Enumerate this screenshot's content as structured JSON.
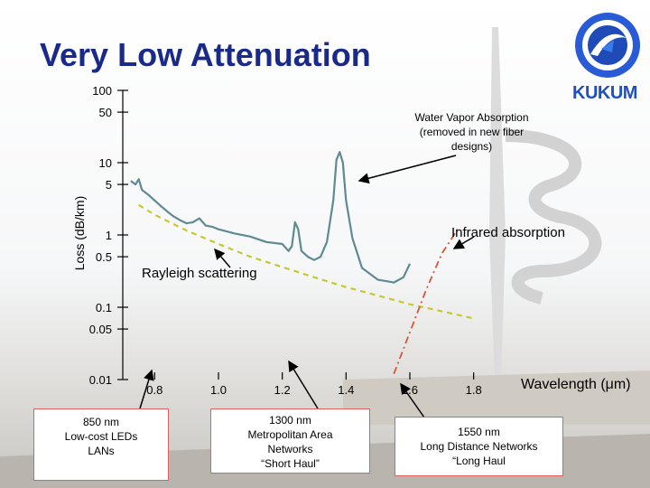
{
  "slide": {
    "title": "Very Low Attenuation",
    "logo_text": "KUKUM"
  },
  "notes": {
    "water_vapor": [
      "Water Vapor Absorption",
      "(removed in new fiber",
      "designs)"
    ],
    "n850": [
      "850 nm",
      "Low-cost LEDs",
      "LANs"
    ],
    "n1300": [
      "1300 nm",
      "Metropolitan Area",
      "Networks",
      "“Short Haul”"
    ],
    "n1550": [
      "1550 nm",
      "Long Distance Networks",
      "“Long Haul"
    ]
  },
  "colors": {
    "title": "#1a2a8a",
    "loss_curve": "#5f8a93",
    "rayleigh": "#c8c832",
    "infrared": "#d8553a",
    "note_border": "#e06060"
  },
  "chart_data": {
    "type": "line",
    "xlabel": "Wavelength (μm)",
    "ylabel": "Loss (dB/km)",
    "y_scale": "log",
    "ylim": [
      0.01,
      100
    ],
    "xlim": [
      0.7,
      1.9
    ],
    "x_ticks": [
      "0.8",
      "1.0",
      "1.2",
      "1.4",
      "1.6",
      "1.8"
    ],
    "y_ticks": [
      "100",
      "50",
      "10",
      "5",
      "1",
      "0.5",
      "0.1",
      "0.05",
      "0.01"
    ],
    "grid": false,
    "annotations": [
      "Infrared absorption",
      "Rayleigh scattering"
    ],
    "series": [
      {
        "name": "Loss",
        "x": [
          0.725,
          0.74,
          0.75,
          0.76,
          0.78,
          0.8,
          0.82,
          0.84,
          0.86,
          0.88,
          0.9,
          0.92,
          0.94,
          0.96,
          0.98,
          1.0,
          1.05,
          1.1,
          1.15,
          1.2,
          1.22,
          1.23,
          1.24,
          1.25,
          1.26,
          1.28,
          1.3,
          1.32,
          1.34,
          1.36,
          1.37,
          1.38,
          1.39,
          1.4,
          1.42,
          1.45,
          1.5,
          1.55,
          1.58,
          1.6
        ],
        "y": [
          5.6,
          5.0,
          5.9,
          4.2,
          3.6,
          3.0,
          2.5,
          2.1,
          1.8,
          1.6,
          1.45,
          1.5,
          1.7,
          1.35,
          1.3,
          1.2,
          1.05,
          0.95,
          0.8,
          0.75,
          0.6,
          0.7,
          1.5,
          1.2,
          0.6,
          0.5,
          0.45,
          0.5,
          0.8,
          3.0,
          11.0,
          14.0,
          10.0,
          3.0,
          0.9,
          0.35,
          0.24,
          0.22,
          0.26,
          0.4
        ]
      },
      {
        "name": "Rayleigh scattering",
        "x": [
          0.75,
          0.8,
          0.9,
          1.0,
          1.1,
          1.2,
          1.3,
          1.4,
          1.5,
          1.6,
          1.7,
          1.8
        ],
        "y": [
          2.6,
          1.9,
          1.15,
          0.75,
          0.5,
          0.36,
          0.26,
          0.19,
          0.145,
          0.11,
          0.088,
          0.07
        ]
      },
      {
        "name": "Infrared absorption",
        "x": [
          1.55,
          1.6,
          1.65,
          1.7,
          1.75
        ],
        "y": [
          0.012,
          0.045,
          0.17,
          0.55,
          1.2
        ]
      }
    ]
  }
}
